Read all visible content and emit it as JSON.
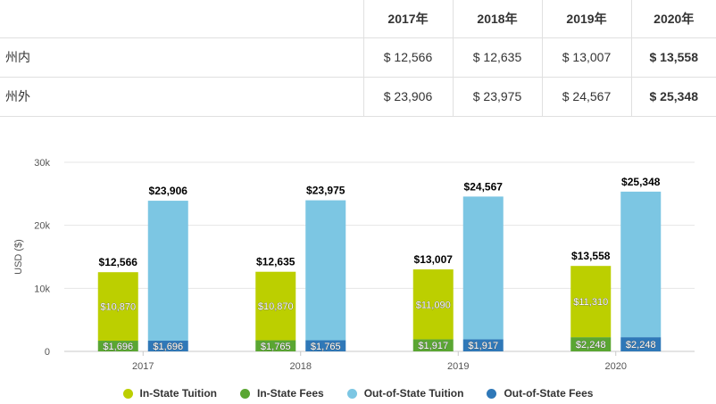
{
  "table": {
    "header": [
      "",
      "2017年",
      "2018年",
      "2019年",
      "2020年"
    ],
    "rows": [
      {
        "label": "州内",
        "values": [
          "$ 12,566",
          "$ 12,635",
          "$ 13,007",
          "$ 13,558"
        ]
      },
      {
        "label": "州外",
        "values": [
          "$ 23,906",
          "$ 23,975",
          "$ 24,567",
          "$ 25,348"
        ]
      }
    ]
  },
  "chart_data": {
    "type": "bar",
    "stacked": true,
    "categories": [
      "2017",
      "2018",
      "2019",
      "2020"
    ],
    "ylabel": "USD ($)",
    "ylim": [
      0,
      30000
    ],
    "yticks": [
      0,
      10000,
      20000,
      30000
    ],
    "ytick_labels": [
      "0",
      "10k",
      "20k",
      "30k"
    ],
    "grid": true,
    "legend_position": "bottom",
    "series": [
      {
        "name": "In-State Tuition",
        "stack": "in",
        "color": "#bccf00",
        "values": [
          10870,
          10870,
          11090,
          11310
        ],
        "labels": [
          "$10,870",
          "$10,870",
          "$11,090",
          "$11,310"
        ]
      },
      {
        "name": "In-State Fees",
        "stack": "in",
        "color": "#5aa632",
        "values": [
          1696,
          1765,
          1917,
          2248
        ],
        "labels": [
          "$1,696",
          "$1,765",
          "$1,917",
          "$2,248"
        ]
      },
      {
        "name": "Out-of-State Tuition",
        "stack": "out",
        "color": "#7cc6e3",
        "values": [
          22210,
          22210,
          22650,
          23100
        ],
        "labels": []
      },
      {
        "name": "Out-of-State Fees",
        "stack": "out",
        "color": "#2f78b8",
        "values": [
          1696,
          1765,
          1917,
          2248
        ],
        "labels": [
          "$1,696",
          "$1,765",
          "$1,917",
          "$2,248"
        ]
      }
    ],
    "totals": {
      "in": [
        "$12,566",
        "$12,635",
        "$13,007",
        "$13,558"
      ],
      "out": [
        "$23,906",
        "$23,975",
        "$24,567",
        "$25,348"
      ]
    }
  }
}
